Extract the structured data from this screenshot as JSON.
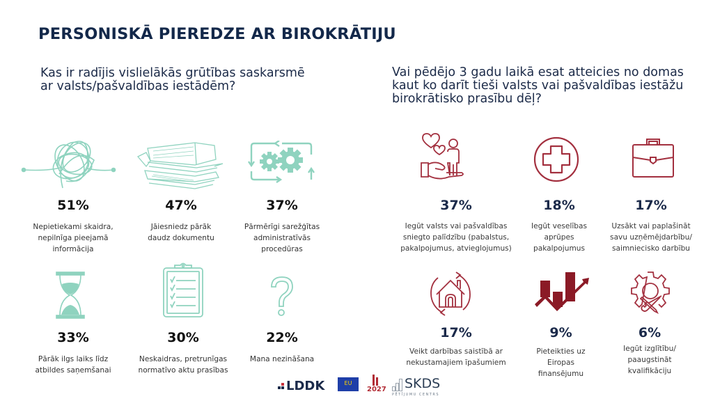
{
  "header": {
    "title": "PERSONISKĀ PIEREDZE AR BIROKRĀTIJU"
  },
  "left_section": {
    "question": "Kas ir radījis vislielākās grūtības saskarsmē ar valsts/pašvaldības iestādēm?",
    "items": [
      {
        "percent": "51%",
        "label": "Nepietiekami skaidra, nepilnīga pieejamā informācija",
        "icon": "tangled-line-icon"
      },
      {
        "percent": "47%",
        "label": "Jāiesniedz pārāk daudz dokumentu",
        "icon": "paper-stack-icon"
      },
      {
        "percent": "37%",
        "label": "Pārmērīgi sarežģītas administratīvās procedūras",
        "icon": "gears-cycle-icon"
      },
      {
        "percent": "33%",
        "label": "Pārāk ilgs laiks līdz atbildes saņemšanai",
        "icon": "hourglass-icon"
      },
      {
        "percent": "30%",
        "label": "Neskaidras, pretrunīgas normatīvo aktu prasības",
        "icon": "checklist-clipboard-icon"
      },
      {
        "percent": "22%",
        "label": "Mana nezināšana",
        "icon": "question-mark-icon"
      }
    ],
    "icon_color": "#8fd3bf"
  },
  "right_section": {
    "question": "Vai pēdējo 3 gadu laikā esat atteicies no domas kaut ko darīt tieši valsts vai pašvaldības iestāžu birokrātisko prasību dēļ?",
    "items": [
      {
        "percent": "37%",
        "label": "Iegūt valsts vai pašvaldības sniegto palīdzību (pabalstus, pakalpojumus, atvieglojumus)",
        "icon": "hand-hearts-person-icon"
      },
      {
        "percent": "18%",
        "label": "Iegūt veselības aprūpes pakalpojumus",
        "icon": "medical-cross-icon"
      },
      {
        "percent": "17%",
        "label": "Uzsākt vai paplašināt savu uzņēmējdarbību/ saimniecisko darbību",
        "icon": "briefcase-icon"
      },
      {
        "percent": "17%",
        "label": "Veikt darbības saistībā ar nekustamajiem īpašumiem",
        "icon": "house-cycle-icon"
      },
      {
        "percent": "9%",
        "label": "Pieteikties uz Eiropas finansējumu",
        "icon": "growth-chart-icon"
      },
      {
        "percent": "6%",
        "label": "Iegūt izglītību/ paaugstināt kvalifikāciju",
        "icon": "gear-tools-icon"
      }
    ],
    "icon_color": "#a3303f"
  },
  "footer": {
    "logos": {
      "lddk": "LDDK",
      "eu": "EU",
      "year": "2027",
      "skds": "SKDS",
      "skds_sub": "PĒTĪJUMU CENTRS"
    }
  }
}
